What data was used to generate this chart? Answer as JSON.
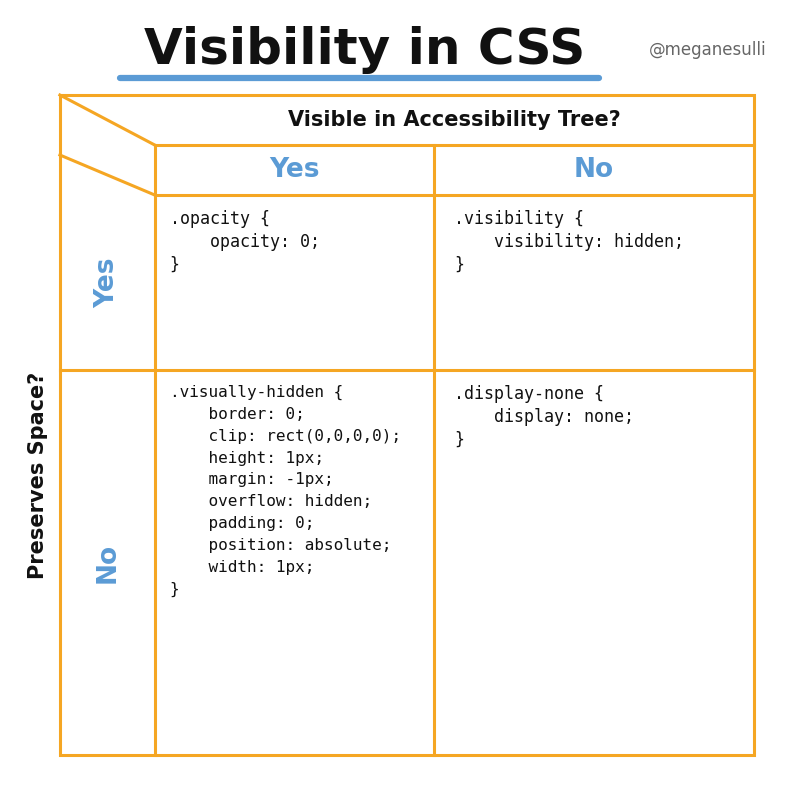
{
  "title": "Visibility in CSS",
  "title_underline_color": "#5b9bd5",
  "handle": "@meganesulli",
  "col_header": "Visible in Accessibility Tree?",
  "col_labels": [
    "Yes",
    "No"
  ],
  "row_header": "Preserves Space?",
  "row_labels": [
    "Yes",
    "No"
  ],
  "label_color": "#5b9bd5",
  "border_color": "#f5a623",
  "bg_color": "#ffffff",
  "cell_contents": [
    [
      ".opacity {\n    opacity: 0;\n}",
      ".visibility {\n    visibility: hidden;\n}"
    ],
    [
      ".visually-hidden {\n    border: 0;\n    clip: rect(0,0,0,0);\n    height: 1px;\n    margin: -1px;\n    overflow: hidden;\n    padding: 0;\n    position: absolute;\n    width: 1px;\n}",
      ".display-none {\n    display: none;\n}"
    ]
  ]
}
